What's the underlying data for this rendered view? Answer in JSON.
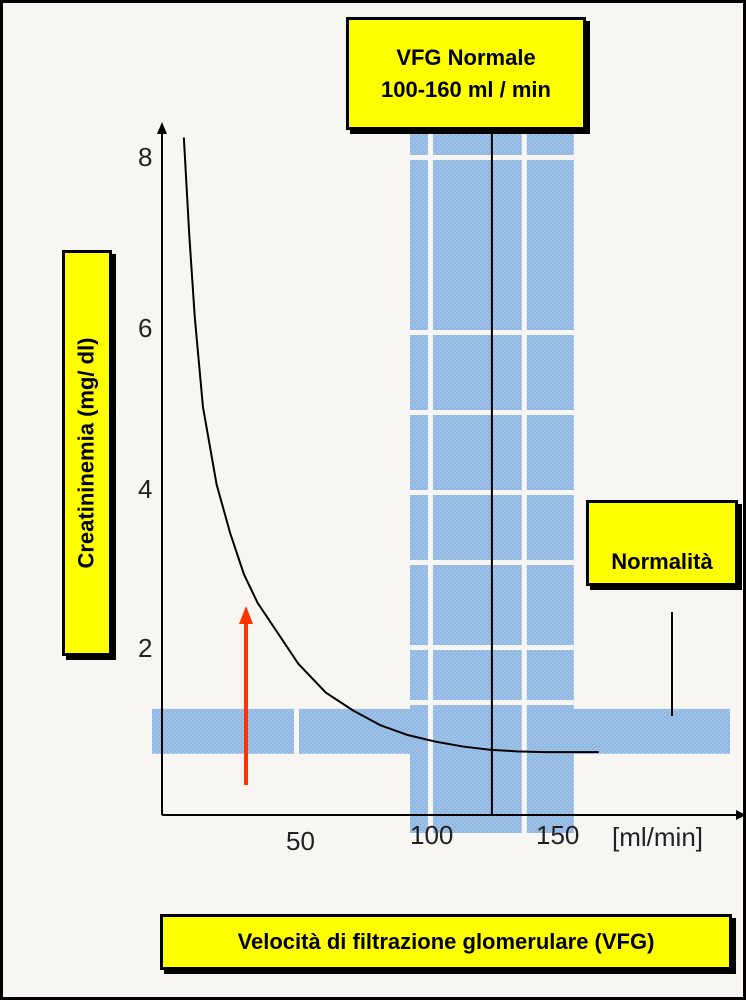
{
  "chart_data": {
    "type": "line",
    "title_lines": [
      "VFG Normale",
      "100-160 ml / min"
    ],
    "xlabel": "Velocità di filtrazione glomerulare (VFG)",
    "ylabel": "Creatininemia (mg/ dl)",
    "x_unit": "[ml/min]",
    "x_ticks": [
      "50",
      "100",
      "150"
    ],
    "y_ticks": [
      "2",
      "4",
      "6",
      "8"
    ],
    "xlim": [
      0,
      175
    ],
    "ylim": [
      0,
      8.2
    ],
    "normal_band_x": [
      100,
      160
    ],
    "normal_band_y": [
      0.75,
      1.3
    ],
    "normal_line_x": 130,
    "annotation": "Normalità",
    "series": [
      {
        "x": [
          8,
          10,
          12,
          15,
          20,
          25,
          30,
          35,
          40,
          50,
          60,
          70,
          80,
          90,
          100,
          110,
          120,
          130,
          140,
          150,
          160
        ],
        "y": [
          8.3,
          7.1,
          6.1,
          5.0,
          4.05,
          3.45,
          2.95,
          2.6,
          2.35,
          1.85,
          1.5,
          1.28,
          1.1,
          0.98,
          0.9,
          0.84,
          0.8,
          0.78,
          0.77,
          0.77,
          0.77
        ]
      }
    ],
    "colors": {
      "band": "#8fb7e2",
      "curve": "#000000",
      "arrow": "#ff3300",
      "label_bg": "#ffff00"
    }
  }
}
